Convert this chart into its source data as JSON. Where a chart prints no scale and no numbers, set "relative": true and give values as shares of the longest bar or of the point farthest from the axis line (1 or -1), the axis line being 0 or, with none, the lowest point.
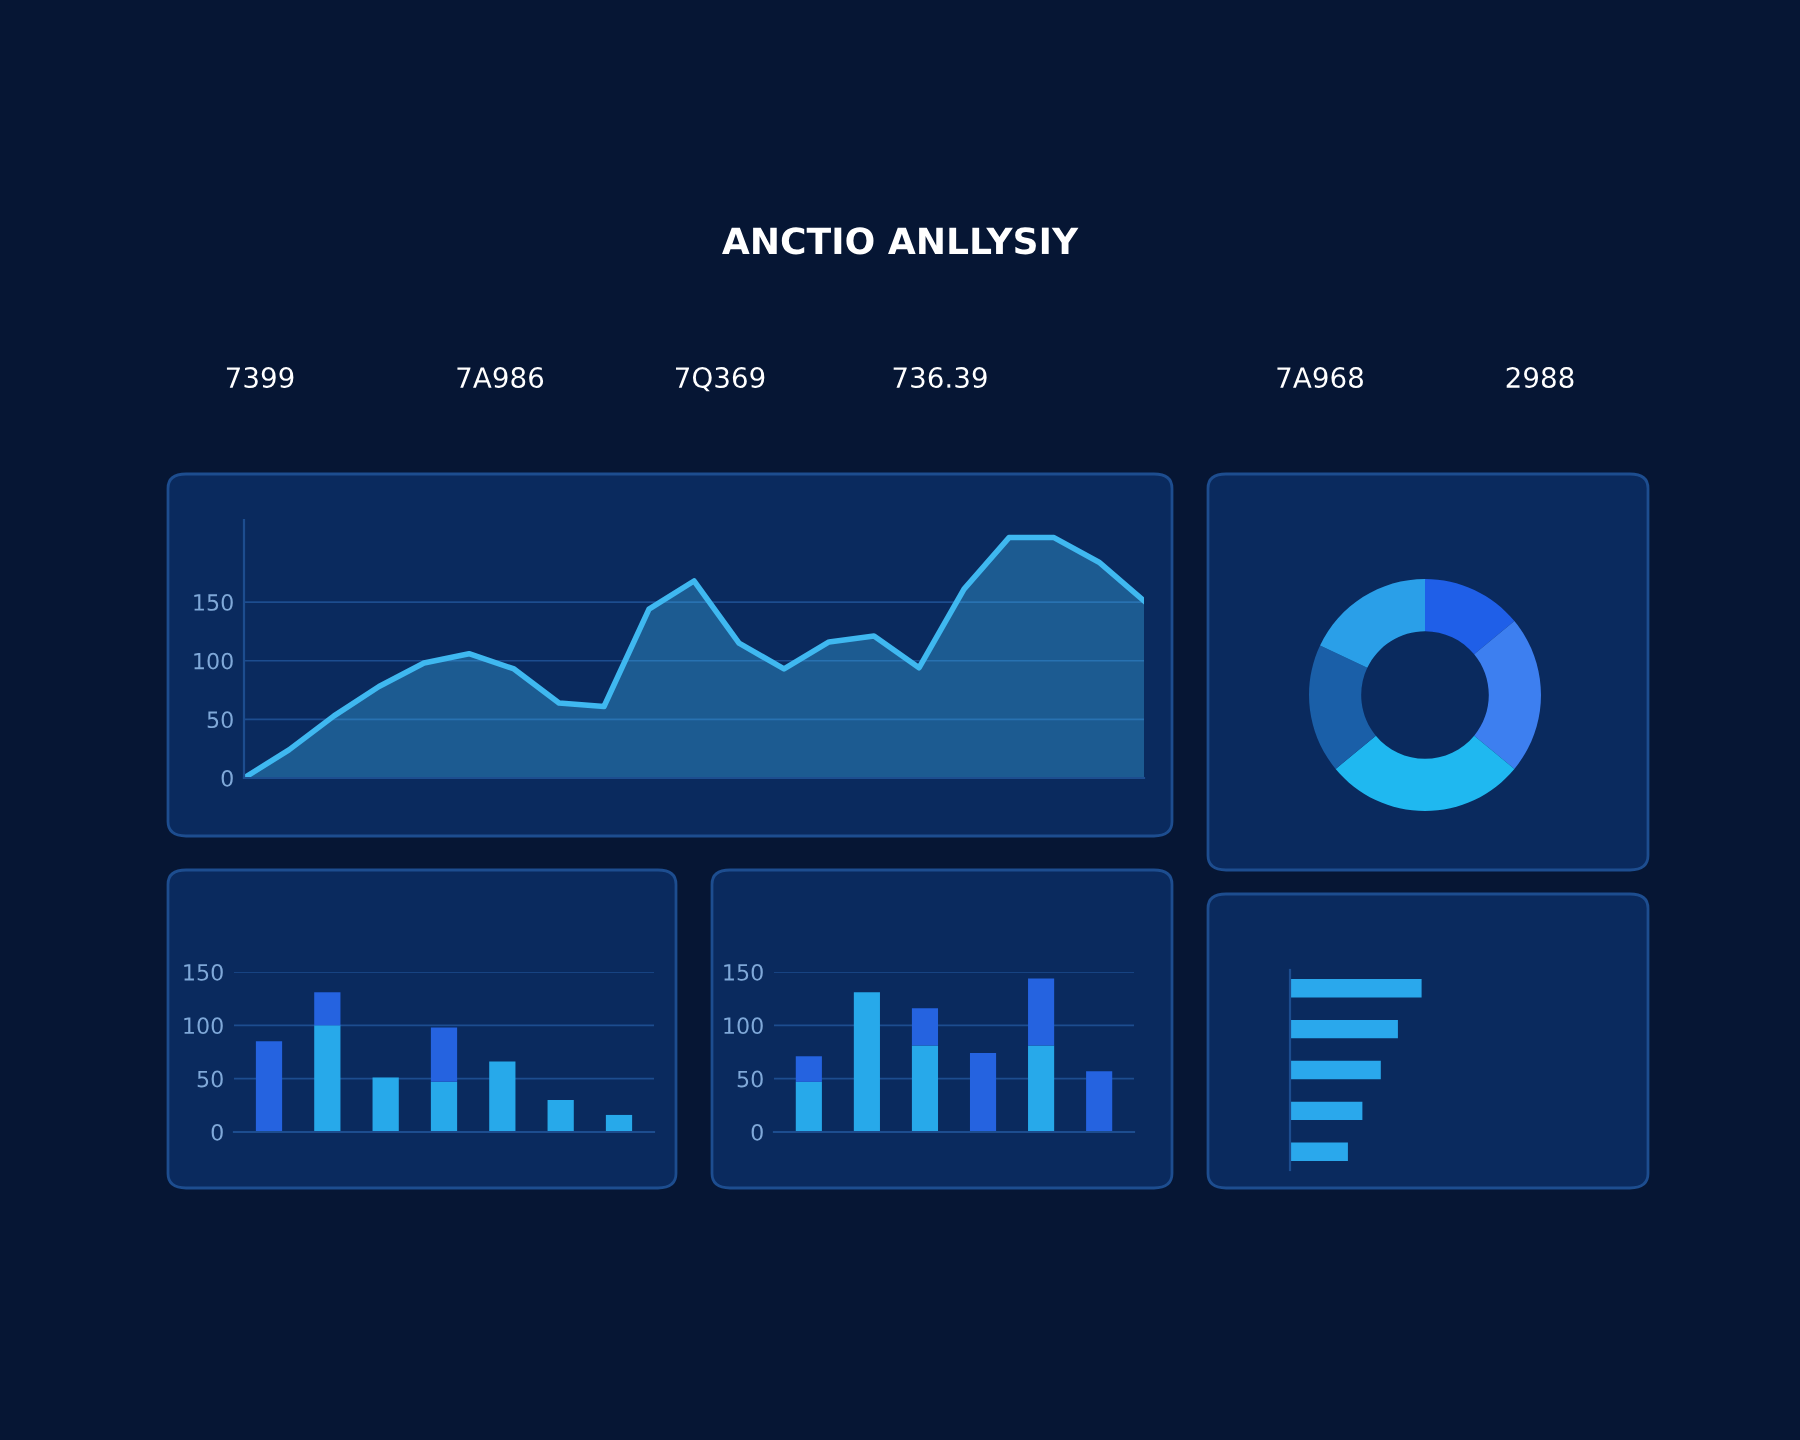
{
  "chart_data": [
    {
      "type": "area",
      "categories": [
        null,
        null,
        null,
        null,
        null,
        null,
        null,
        null,
        null,
        null,
        null,
        null,
        null,
        null,
        null,
        null,
        null,
        null,
        null,
        null,
        null
      ],
      "series": [
        {
          "color": "#3fb8f0",
          "values": [
            0,
            24,
            53,
            78,
            98,
            106,
            93,
            64,
            61,
            144,
            168,
            115,
            93,
            116,
            121,
            94,
            161,
            205,
            205,
            184,
            151
          ]
        }
      ],
      "ylim": [
        0,
        220
      ],
      "yticks": [
        0,
        50,
        100,
        150
      ],
      "grid": "y"
    },
    {
      "type": "donut",
      "categories": [
        null,
        null,
        null,
        null,
        null
      ],
      "values": [
        14,
        22,
        28,
        18,
        18
      ],
      "colors": [
        "#1f5fe8",
        "#3d7ff0",
        "#1fb8f0",
        "#1a5fa8",
        "#2a9fe8"
      ]
    },
    {
      "type": "bar",
      "stacked": true,
      "categories": [
        null,
        null,
        null,
        null,
        null,
        null,
        null
      ],
      "series": [
        {
          "color": "#27a9ea",
          "values": [
            0,
            100,
            51,
            47,
            66,
            30,
            16
          ]
        },
        {
          "color": "#2563e0",
          "values": [
            85,
            31,
            0,
            51,
            0,
            0,
            0
          ]
        }
      ],
      "ylim": [
        0,
        150
      ],
      "yticks": [
        0,
        50,
        100,
        150
      ],
      "grid": "y"
    },
    {
      "type": "bar",
      "stacked": true,
      "categories": [
        null,
        null,
        null,
        null,
        null,
        null
      ],
      "series": [
        {
          "color": "#27a9ea",
          "values": [
            47,
            131,
            81,
            0,
            81,
            0
          ]
        },
        {
          "color": "#2563e0",
          "values": [
            24,
            0,
            35,
            74,
            63,
            57
          ]
        }
      ],
      "ylim": [
        0,
        150
      ],
      "yticks": [
        0,
        50,
        100,
        150
      ],
      "grid": "y"
    },
    {
      "type": "bar",
      "orientation": "horizontal",
      "relative": true,
      "categories": [
        null,
        null,
        null,
        null,
        null
      ],
      "values": [
        1,
        0.82,
        0.69,
        0.55,
        0.44
      ],
      "color": "#2aa8ec"
    },
    {
      "type": "other",
      "title": "ANCTIO ANLLYSIY",
      "annotations": [
        "7399",
        "7A986",
        "7Q369",
        "736.39",
        "7A968",
        "2988"
      ]
    }
  ]
}
